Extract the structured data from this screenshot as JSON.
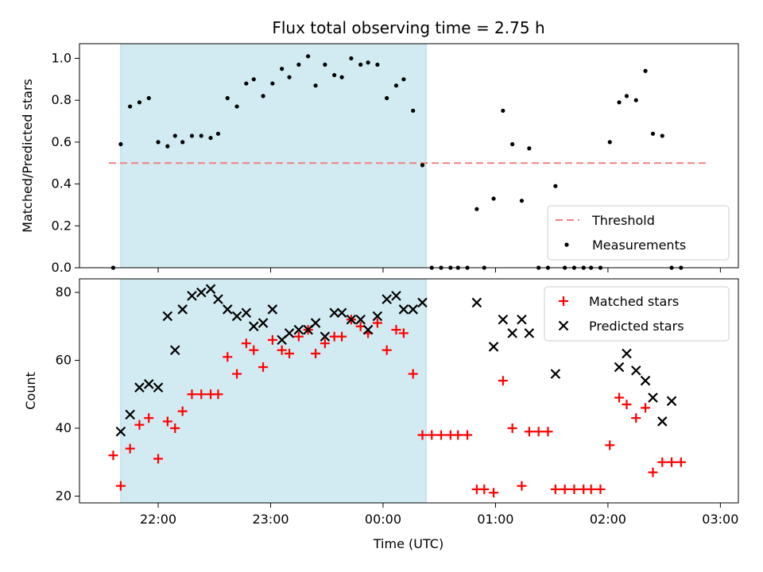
{
  "title": "Flux total observing time = 2.75 h",
  "colors": {
    "shade": "#add8e6",
    "threshold": "#f08080",
    "measurements": "#000000",
    "matched": "#ff0000",
    "predicted": "#000000"
  },
  "chart_data": [
    {
      "type": "scatter",
      "xaxis": "time-of-night (hours after 00:00 UTC of first night, x < 0 means previous evening)",
      "ylabel": "Matched/Predicted stars",
      "ylim": [
        0,
        1.07
      ],
      "yticks": [
        "0.0",
        "0.2",
        "0.4",
        "0.6",
        "0.8",
        "1.0"
      ],
      "ytick_values": [
        0.0,
        0.2,
        0.4,
        0.6,
        0.8,
        1.0
      ],
      "xticks": [
        "22:00",
        "23:00",
        "00:00",
        "01:00",
        "02:00",
        "03:00"
      ],
      "shaded_interval": [
        "21:40",
        "00:23"
      ],
      "threshold": 0.5,
      "legend": {
        "position": "lower right",
        "entries": [
          "Threshold",
          "Measurements"
        ]
      },
      "series": [
        {
          "name": "Measurements",
          "marker": "dot",
          "points": [
            [
              "21:36",
              0.0
            ],
            [
              "21:40",
              0.59
            ],
            [
              "21:45",
              0.77
            ],
            [
              "21:50",
              0.79
            ],
            [
              "21:55",
              0.81
            ],
            [
              "22:00",
              0.6
            ],
            [
              "22:05",
              0.58
            ],
            [
              "22:09",
              0.63
            ],
            [
              "22:13",
              0.6
            ],
            [
              "22:18",
              0.63
            ],
            [
              "22:23",
              0.63
            ],
            [
              "22:28",
              0.62
            ],
            [
              "22:32",
              0.64
            ],
            [
              "22:37",
              0.81
            ],
            [
              "22:42",
              0.77
            ],
            [
              "22:47",
              0.88
            ],
            [
              "22:51",
              0.9
            ],
            [
              "22:56",
              0.82
            ],
            [
              "23:01",
              0.88
            ],
            [
              "23:06",
              0.95
            ],
            [
              "23:10",
              0.91
            ],
            [
              "23:15",
              0.97
            ],
            [
              "23:20",
              1.01
            ],
            [
              "23:24",
              0.87
            ],
            [
              "23:29",
              0.97
            ],
            [
              "23:34",
              0.92
            ],
            [
              "23:38",
              0.91
            ],
            [
              "23:43",
              1.0
            ],
            [
              "23:48",
              0.97
            ],
            [
              "23:52",
              0.98
            ],
            [
              "23:57",
              0.97
            ],
            [
              "00:02",
              0.81
            ],
            [
              "00:07",
              0.87
            ],
            [
              "00:11",
              0.9
            ],
            [
              "00:16",
              0.75
            ],
            [
              "00:21",
              0.49
            ],
            [
              "00:26",
              0.0
            ],
            [
              "00:31",
              0.0
            ],
            [
              "00:36",
              0.0
            ],
            [
              "00:40",
              0.0
            ],
            [
              "00:45",
              0.0
            ],
            [
              "00:50",
              0.28
            ],
            [
              "00:54",
              0.0
            ],
            [
              "00:59",
              0.33
            ],
            [
              "01:04",
              0.75
            ],
            [
              "01:09",
              0.59
            ],
            [
              "01:14",
              0.32
            ],
            [
              "01:18",
              0.57
            ],
            [
              "01:23",
              0.0
            ],
            [
              "01:28",
              0.0
            ],
            [
              "01:32",
              0.39
            ],
            [
              "01:37",
              0.0
            ],
            [
              "01:42",
              0.0
            ],
            [
              "01:47",
              0.0
            ],
            [
              "01:51",
              0.0
            ],
            [
              "01:56",
              0.0
            ],
            [
              "02:01",
              0.6
            ],
            [
              "02:06",
              0.79
            ],
            [
              "02:10",
              0.82
            ],
            [
              "02:15",
              0.8
            ],
            [
              "02:20",
              0.94
            ],
            [
              "02:24",
              0.64
            ],
            [
              "02:29",
              0.63
            ],
            [
              "02:34",
              0.0
            ],
            [
              "02:39",
              0.0
            ]
          ]
        }
      ]
    },
    {
      "type": "scatter",
      "xlabel": "Time (UTC)",
      "ylabel": "Count",
      "ylim": [
        18,
        84
      ],
      "yticks": [
        "20",
        "40",
        "60",
        "80"
      ],
      "ytick_values": [
        20,
        40,
        60,
        80
      ],
      "xticks": [
        "22:00",
        "23:00",
        "00:00",
        "01:00",
        "02:00",
        "03:00"
      ],
      "shaded_interval": [
        "21:40",
        "00:23"
      ],
      "legend": {
        "position": "upper right",
        "entries": [
          "Matched stars",
          "Predicted stars"
        ]
      },
      "series": [
        {
          "name": "Matched stars",
          "marker": "plus",
          "points": [
            [
              "21:36",
              32
            ],
            [
              "21:40",
              23
            ],
            [
              "21:45",
              34
            ],
            [
              "21:50",
              41
            ],
            [
              "21:55",
              43
            ],
            [
              "22:00",
              31
            ],
            [
              "22:05",
              42
            ],
            [
              "22:09",
              40
            ],
            [
              "22:13",
              45
            ],
            [
              "22:18",
              50
            ],
            [
              "22:23",
              50
            ],
            [
              "22:28",
              50
            ],
            [
              "22:32",
              50
            ],
            [
              "22:37",
              61
            ],
            [
              "22:42",
              56
            ],
            [
              "22:47",
              65
            ],
            [
              "22:51",
              63
            ],
            [
              "22:56",
              58
            ],
            [
              "23:01",
              66
            ],
            [
              "23:06",
              63
            ],
            [
              "23:10",
              62
            ],
            [
              "23:15",
              67
            ],
            [
              "23:20",
              69
            ],
            [
              "23:24",
              62
            ],
            [
              "23:29",
              65
            ],
            [
              "23:34",
              67
            ],
            [
              "23:38",
              67
            ],
            [
              "23:43",
              72
            ],
            [
              "23:48",
              70
            ],
            [
              "23:52",
              68
            ],
            [
              "23:57",
              71
            ],
            [
              "00:02",
              63
            ],
            [
              "00:07",
              69
            ],
            [
              "00:11",
              68
            ],
            [
              "00:16",
              56
            ],
            [
              "00:21",
              38
            ],
            [
              "00:26",
              38
            ],
            [
              "00:31",
              38
            ],
            [
              "00:36",
              38
            ],
            [
              "00:40",
              38
            ],
            [
              "00:45",
              38
            ],
            [
              "00:50",
              22
            ],
            [
              "00:54",
              22
            ],
            [
              "00:59",
              21
            ],
            [
              "01:04",
              54
            ],
            [
              "01:09",
              40
            ],
            [
              "01:14",
              23
            ],
            [
              "01:18",
              39
            ],
            [
              "01:23",
              39
            ],
            [
              "01:28",
              39
            ],
            [
              "01:32",
              22
            ],
            [
              "01:37",
              22
            ],
            [
              "01:42",
              22
            ],
            [
              "01:47",
              22
            ],
            [
              "01:51",
              22
            ],
            [
              "01:56",
              22
            ],
            [
              "02:01",
              35
            ],
            [
              "02:06",
              49
            ],
            [
              "02:10",
              47
            ],
            [
              "02:15",
              43
            ],
            [
              "02:20",
              46
            ],
            [
              "02:24",
              27
            ],
            [
              "02:29",
              30
            ],
            [
              "02:34",
              30
            ],
            [
              "02:39",
              30
            ]
          ]
        },
        {
          "name": "Predicted stars",
          "marker": "x",
          "points": [
            [
              "21:40",
              39
            ],
            [
              "21:45",
              44
            ],
            [
              "21:50",
              52
            ],
            [
              "21:55",
              53
            ],
            [
              "22:00",
              52
            ],
            [
              "22:05",
              73
            ],
            [
              "22:09",
              63
            ],
            [
              "22:13",
              75
            ],
            [
              "22:18",
              79
            ],
            [
              "22:23",
              80
            ],
            [
              "22:28",
              81
            ],
            [
              "22:32",
              78
            ],
            [
              "22:37",
              75
            ],
            [
              "22:42",
              73
            ],
            [
              "22:47",
              74
            ],
            [
              "22:51",
              70
            ],
            [
              "22:56",
              71
            ],
            [
              "23:01",
              75
            ],
            [
              "23:06",
              66
            ],
            [
              "23:10",
              68
            ],
            [
              "23:15",
              69
            ],
            [
              "23:20",
              69
            ],
            [
              "23:24",
              71
            ],
            [
              "23:29",
              67
            ],
            [
              "23:34",
              74
            ],
            [
              "23:38",
              74
            ],
            [
              "23:43",
              72
            ],
            [
              "23:48",
              72
            ],
            [
              "23:52",
              69
            ],
            [
              "23:57",
              73
            ],
            [
              "00:02",
              78
            ],
            [
              "00:07",
              79
            ],
            [
              "00:11",
              75
            ],
            [
              "00:16",
              75
            ],
            [
              "00:21",
              77
            ],
            [
              "00:50",
              77
            ],
            [
              "00:59",
              64
            ],
            [
              "01:04",
              72
            ],
            [
              "01:09",
              68
            ],
            [
              "01:14",
              72
            ],
            [
              "01:18",
              68
            ],
            [
              "01:32",
              56
            ],
            [
              "02:06",
              58
            ],
            [
              "02:10",
              62
            ],
            [
              "02:15",
              57
            ],
            [
              "02:20",
              54
            ],
            [
              "02:24",
              49
            ],
            [
              "02:29",
              42
            ],
            [
              "02:34",
              48
            ]
          ]
        }
      ]
    }
  ]
}
